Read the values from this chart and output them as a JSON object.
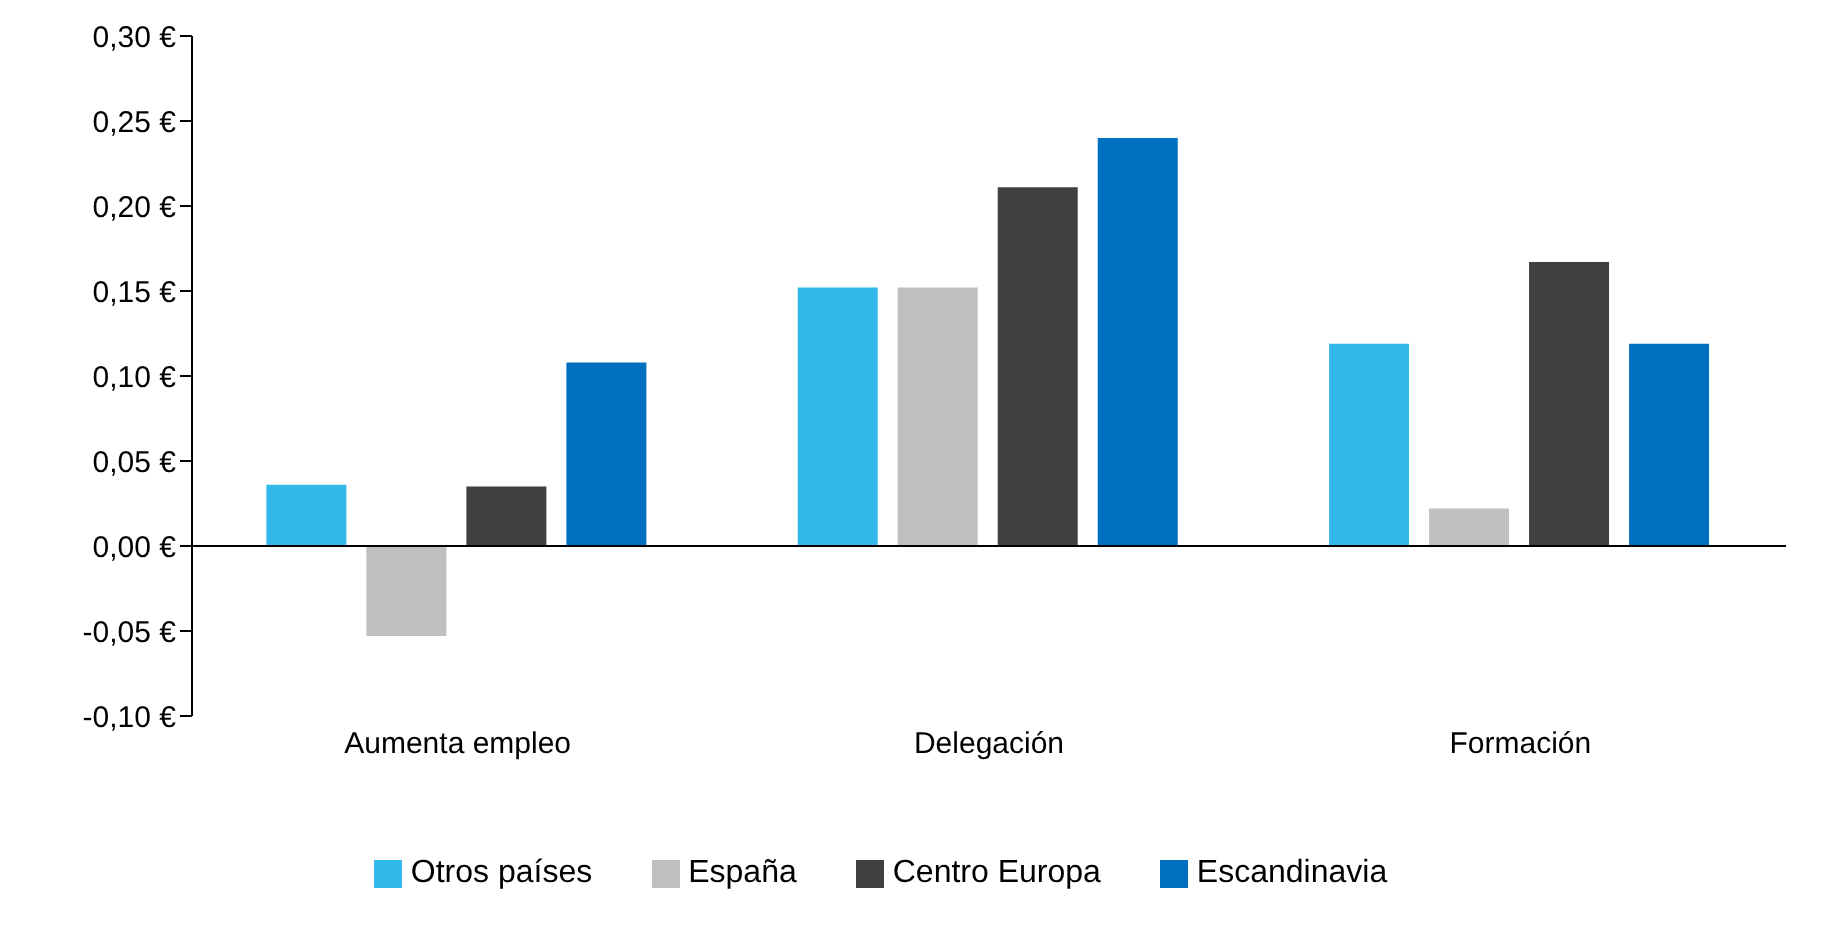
{
  "chart_data": {
    "type": "bar",
    "categories": [
      "Aumenta empleo",
      "Delegación",
      "Formación"
    ],
    "series": [
      {
        "name": "Otros países",
        "color": "#33b8ec",
        "values": [
          0.036,
          0.152,
          0.119
        ]
      },
      {
        "name": "España",
        "color": "#bfbfbf",
        "values": [
          -0.053,
          0.152,
          0.022
        ]
      },
      {
        "name": "Centro Europa",
        "color": "#404040",
        "values": [
          0.035,
          0.211,
          0.167
        ]
      },
      {
        "name": "Escandinavia",
        "color": "#0070c0",
        "values": [
          0.108,
          0.24,
          0.119
        ]
      }
    ],
    "ylim": [
      -0.1,
      0.3
    ],
    "yticks": [
      {
        "value": -0.1,
        "label": "-0,10 €"
      },
      {
        "value": -0.05,
        "label": "-0,05 €"
      },
      {
        "value": 0,
        "label": "0,00 €"
      },
      {
        "value": 0.05,
        "label": "0,05 €"
      },
      {
        "value": 0.1,
        "label": "0,10 €"
      },
      {
        "value": 0.15,
        "label": "0,15 €"
      },
      {
        "value": 0.2,
        "label": "0,20 €"
      },
      {
        "value": 0.25,
        "label": "0,25 €"
      },
      {
        "value": 0.3,
        "label": "0,30 €"
      }
    ],
    "legend": "bottom"
  }
}
